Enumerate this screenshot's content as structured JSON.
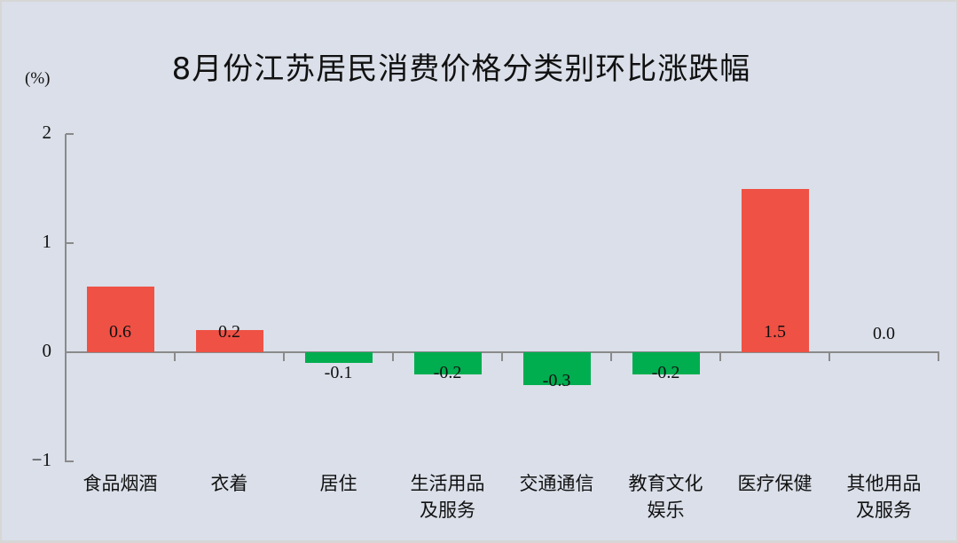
{
  "chart_data": {
    "type": "bar",
    "title": "8月份江苏居民消费价格分类别环比涨跌幅",
    "ylabel": "(%)",
    "xlabel": "",
    "ylim": [
      -1,
      2
    ],
    "yticks": [
      "2",
      "1",
      "0",
      "−1"
    ],
    "grid": false,
    "legend": null,
    "categories": [
      "食品烟酒",
      "衣着",
      "居住",
      "生活用品及服务",
      "交通通信",
      "教育文化娱乐",
      "医疗保健",
      "其他用品及服务"
    ],
    "category_lines": [
      [
        "食品烟酒"
      ],
      [
        "衣着"
      ],
      [
        "居住"
      ],
      [
        "生活用品",
        "及服务"
      ],
      [
        "交通通信"
      ],
      [
        "教育文化",
        "娱乐"
      ],
      [
        "医疗保健"
      ],
      [
        "其他用品",
        "及服务"
      ]
    ],
    "values": [
      0.6,
      0.2,
      -0.1,
      -0.2,
      -0.3,
      -0.2,
      1.5,
      0.0
    ],
    "value_labels": [
      "0.6",
      "0.2",
      "-0.1",
      "-0.2",
      "-0.3",
      "-0.2",
      "1.5",
      "0.0"
    ],
    "colors": {
      "positive": "#ef5145",
      "negative": "#00ad4f"
    }
  }
}
